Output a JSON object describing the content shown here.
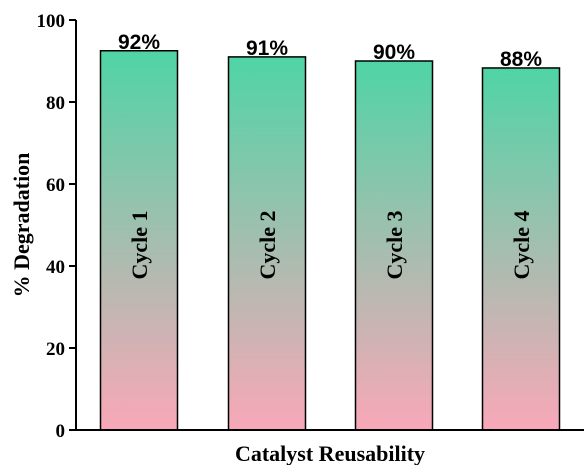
{
  "chart_data": {
    "type": "bar",
    "categories": [
      "Cycle 1",
      "Cycle 2",
      "Cycle 3",
      "Cycle 4"
    ],
    "values": [
      92.5,
      91,
      90,
      88.3
    ],
    "data_labels": [
      "92%",
      "91%",
      "90%",
      "88%"
    ],
    "xlabel": "Catalyst Reusability",
    "ylabel": "% Degradation",
    "ylim": [
      0,
      100
    ],
    "yticks": [
      0,
      20,
      40,
      60,
      80,
      100
    ],
    "grid": false,
    "bar_gradient": {
      "top": "#4fd4a6",
      "bottom": "#f9a8b8"
    },
    "bar_edge_color": "#000000"
  }
}
